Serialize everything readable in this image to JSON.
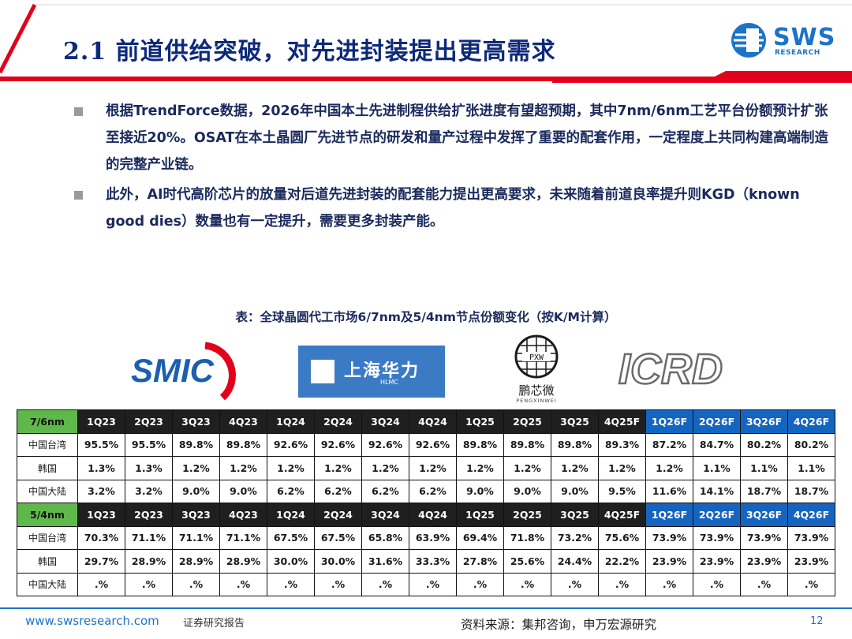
{
  "header": {
    "title": "2.1 前道供给突破，对先进封装提出更高需求",
    "logo": {
      "word": "SWS",
      "sub": "RESEARCH",
      "icon": "sws-research-mark",
      "color": "#1c73c8"
    },
    "accent_color": "#e3001b"
  },
  "bullets": [
    "根据TrendForce数据，2026年中国本土先进制程供给扩张进度有望超预期，其中7nm/6nm工艺平台份额预计扩张至接近20%。OSAT在本土晶圆厂先进节点的研发和量产过程中发挥了重要的配套作用，一定程度上共同构建高端制造的完整产业链。",
    "此外，AI时代高阶芯片的放量对后道先进封装的配套能力提出更高要求，未来随着前道良率提升则KGD（known good dies）数量也有一定提升，需要更多封装产能。"
  ],
  "table_caption": "表：全球晶圆代工市场6/7nm及5/4nm节点份额变化（按K/M计算）",
  "logos": {
    "smic": {
      "text": "SMIC",
      "icon": "smic-logo"
    },
    "hlmc": {
      "text": "上海华力",
      "sub": "HLMC",
      "icon": "hlmc-logo"
    },
    "pxw": {
      "name": "鹏芯微",
      "sub": "PENGXINWEI",
      "mark": "PXW",
      "icon": "pxw-globe-logo"
    },
    "icrd": {
      "text": "ICRD",
      "icon": "icrd-logo"
    }
  },
  "table": {
    "blocks": [
      {
        "node": "7/6nm",
        "periods": [
          "1Q23",
          "2Q23",
          "3Q23",
          "4Q23",
          "1Q24",
          "2Q24",
          "3Q24",
          "4Q24",
          "1Q25",
          "2Q25",
          "3Q25",
          "4Q25F",
          "1Q26F",
          "2Q26F",
          "3Q26F",
          "4Q26F"
        ],
        "rows": [
          {
            "region": "中国台湾",
            "values": [
              "95.5%",
              "95.5%",
              "89.8%",
              "89.8%",
              "92.6%",
              "92.6%",
              "92.6%",
              "92.6%",
              "89.8%",
              "89.8%",
              "89.8%",
              "89.3%",
              "87.2%",
              "84.7%",
              "80.2%",
              "80.2%"
            ]
          },
          {
            "region": "韩国",
            "values": [
              "1.3%",
              "1.3%",
              "1.2%",
              "1.2%",
              "1.2%",
              "1.2%",
              "1.2%",
              "1.2%",
              "1.2%",
              "1.2%",
              "1.2%",
              "1.2%",
              "1.2%",
              "1.1%",
              "1.1%",
              "1.1%"
            ]
          },
          {
            "region": "中国大陆",
            "values": [
              "3.2%",
              "3.2%",
              "9.0%",
              "9.0%",
              "6.2%",
              "6.2%",
              "6.2%",
              "6.2%",
              "9.0%",
              "9.0%",
              "9.0%",
              "9.5%",
              "11.6%",
              "14.1%",
              "18.7%",
              "18.7%"
            ]
          }
        ]
      },
      {
        "node": "5/4nm",
        "periods": [
          "1Q23",
          "2Q23",
          "3Q23",
          "4Q23",
          "1Q24",
          "2Q24",
          "3Q24",
          "4Q24",
          "1Q25",
          "2Q25",
          "3Q25",
          "4Q25F",
          "1Q26F",
          "2Q26F",
          "3Q26F",
          "4Q26F"
        ],
        "rows": [
          {
            "region": "中国台湾",
            "values": [
              "70.3%",
              "71.1%",
              "71.1%",
              "71.1%",
              "67.5%",
              "67.5%",
              "65.8%",
              "63.9%",
              "69.4%",
              "71.8%",
              "73.2%",
              "75.6%",
              "73.9%",
              "73.9%",
              "73.9%",
              "73.9%"
            ]
          },
          {
            "region": "韩国",
            "values": [
              "29.7%",
              "28.9%",
              "28.9%",
              "28.9%",
              "30.0%",
              "30.0%",
              "31.6%",
              "33.3%",
              "27.8%",
              "25.6%",
              "24.4%",
              "22.2%",
              "23.9%",
              "23.9%",
              "23.9%",
              "23.9%"
            ]
          },
          {
            "region": "中国大陆",
            "values": [
              ".%",
              ".%",
              ".%",
              ".%",
              ".%",
              ".%",
              ".%",
              ".%",
              ".%",
              ".%",
              ".%",
              ".%",
              ".%",
              ".%",
              ".%",
              ".%"
            ]
          }
        ]
      }
    ],
    "header_colors": {
      "node": "#5fb84a",
      "period": "#1f1f1f",
      "forecast": "#1565c0"
    }
  },
  "footer": {
    "url": "www.swsresearch.com",
    "label": "证券研究报告",
    "source": "资料来源：集邦咨询，申万宏源研究",
    "page": "12"
  }
}
